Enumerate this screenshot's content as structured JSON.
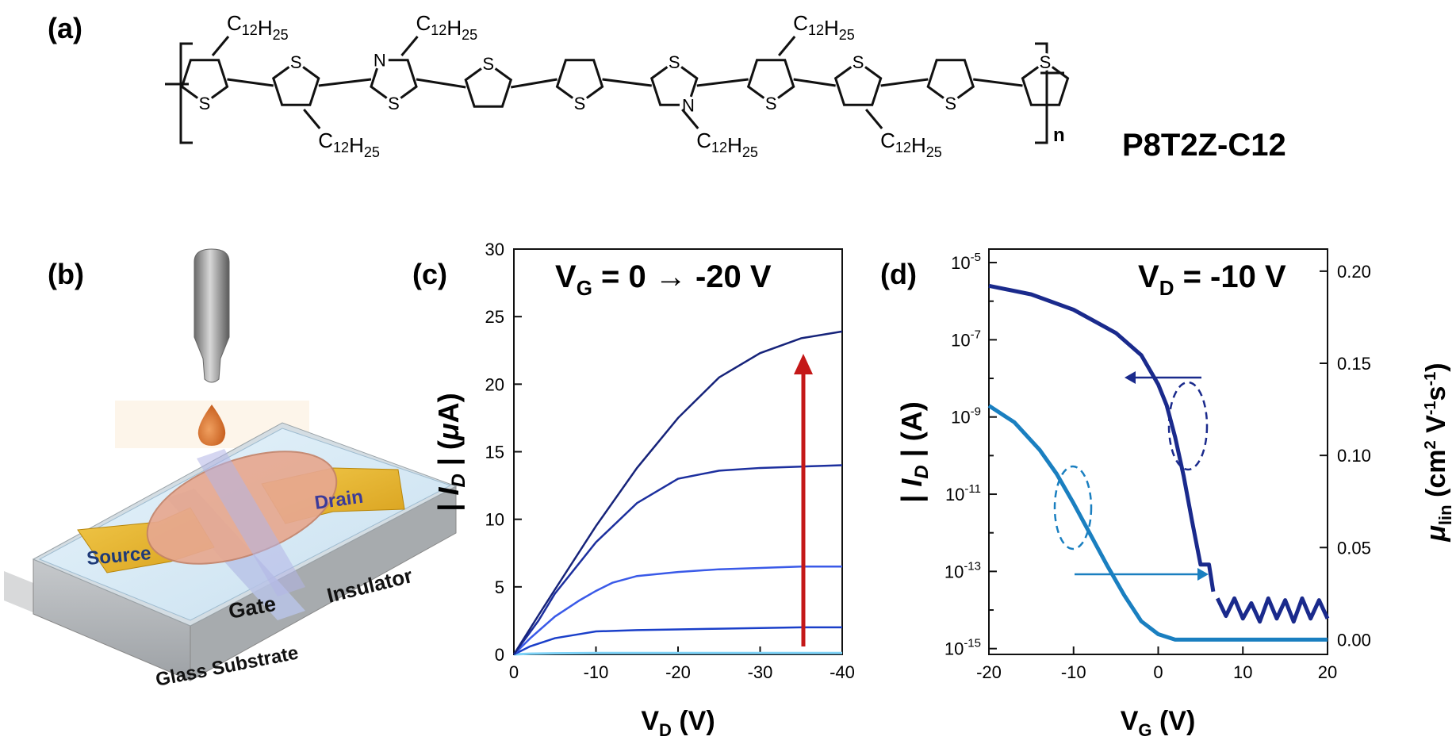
{
  "figure": {
    "panel_a": {
      "label": "(a)",
      "polymer_name": "P8T2Z-C12",
      "repeat_subscript": "n",
      "substituent": "C12H25",
      "heteroatom_S": "S",
      "heteroatom_N": "N"
    },
    "panel_b": {
      "label": "(b)",
      "layers": {
        "source": "Source",
        "drain": "Drain",
        "gate": "Gate",
        "insulator": "Insulator",
        "substrate": "Glass Substrate"
      }
    },
    "panel_c": {
      "label": "(c)",
      "annotation_main": "V",
      "annotation_sub": "G",
      "annotation_rest": " = 0 → -20 V",
      "xlabel_main": "V",
      "xlabel_sub": "D",
      "xlabel_rest": " (V)",
      "ylabel": "| I_D | (μA)"
    },
    "panel_d": {
      "label": "(d)",
      "annotation_main": "V",
      "annotation_sub": "D",
      "annotation_rest": " = -10 V",
      "xlabel_main": "V",
      "xlabel_sub": "G",
      "xlabel_rest": " (V)",
      "ylabel_left": "| I_D | (A)",
      "ylabel_right": "μ_lin (cm² V⁻¹s⁻¹)"
    }
  },
  "chart_data": [
    {
      "panel": "c",
      "type": "line",
      "xlabel": "V_D (V)",
      "ylabel": "| I_D | (μA)",
      "xlim": [
        0,
        -40
      ],
      "ylim": [
        0,
        30
      ],
      "xticks": [
        0,
        -10,
        -20,
        -30,
        -40
      ],
      "yticks": [
        0,
        5,
        10,
        15,
        20,
        25,
        30
      ],
      "annotation": "V_G = 0 → -20 V",
      "colors": [
        "#7fd3f7",
        "#1a3fc9",
        "#3a5ae8",
        "#1c2f9e",
        "#16237a"
      ],
      "series": [
        {
          "x": [
            0,
            -2,
            -5,
            -10,
            -15,
            -20,
            -25,
            -30,
            -35,
            -40
          ],
          "values": [
            0,
            0.05,
            0.08,
            0.1,
            0.1,
            0.1,
            0.1,
            0.1,
            0.1,
            0.1
          ]
        },
        {
          "x": [
            0,
            -2,
            -5,
            -8,
            -10,
            -15,
            -20,
            -25,
            -30,
            -35,
            -40
          ],
          "values": [
            0,
            0.6,
            1.2,
            1.5,
            1.7,
            1.8,
            1.85,
            1.9,
            1.95,
            2.0,
            2.0
          ]
        },
        {
          "x": [
            0,
            -2,
            -5,
            -8,
            -10,
            -12,
            -15,
            -20,
            -25,
            -30,
            -35,
            -40
          ],
          "values": [
            0,
            1.2,
            2.8,
            4.0,
            4.7,
            5.3,
            5.8,
            6.1,
            6.3,
            6.4,
            6.5,
            6.5
          ]
        },
        {
          "x": [
            0,
            -3,
            -5,
            -10,
            -15,
            -20,
            -25,
            -30,
            -35,
            -40
          ],
          "values": [
            0,
            2.5,
            4.5,
            8.3,
            11.2,
            13.0,
            13.6,
            13.8,
            13.9,
            14.0
          ]
        },
        {
          "x": [
            0,
            -3,
            -5,
            -10,
            -15,
            -20,
            -25,
            -30,
            -35,
            -40
          ],
          "values": [
            0,
            2.9,
            4.8,
            9.5,
            13.8,
            17.5,
            20.5,
            22.3,
            23.4,
            23.9
          ]
        }
      ]
    },
    {
      "panel": "d",
      "type": "line",
      "xlabel": "V_G (V)",
      "ylabel": "| I_D | (A)",
      "y2label": "μ_lin (cm² V⁻¹s⁻¹)",
      "xlim": [
        -20,
        20
      ],
      "ylim": [
        1e-15,
        1e-05
      ],
      "y_scale": "log",
      "y2lim": [
        0,
        0.2
      ],
      "xticks": [
        -20,
        -10,
        0,
        10,
        20
      ],
      "y2ticks": [
        0.0,
        0.05,
        0.1,
        0.15,
        0.2
      ],
      "annotation": "V_D = -10 V",
      "colors": [
        "#1a2a8c",
        "#1a7fc0"
      ],
      "series": [
        {
          "axis": "left",
          "x": [
            -20,
            -15,
            -10,
            -5,
            -2,
            0,
            1,
            2,
            3,
            4,
            5,
            6,
            6.5
          ],
          "values": [
            2.5e-06,
            1.5e-06,
            6e-07,
            1.5e-07,
            4e-08,
            7e-09,
            2e-09,
            3e-10,
            3e-11,
            2e-12,
            1.5e-13,
            1.5e-13,
            3e-14
          ]
        },
        {
          "axis": "left",
          "x": [
            7,
            8,
            9,
            10,
            11,
            12,
            13,
            14,
            15,
            16,
            17,
            18,
            19,
            20
          ],
          "values": [
            2e-14,
            7e-15,
            2e-14,
            6e-15,
            1.5e-14,
            5e-15,
            2e-14,
            6e-15,
            1.8e-14,
            5e-15,
            2e-14,
            6e-15,
            1.8e-14,
            6e-15
          ]
        },
        {
          "axis": "right",
          "x": [
            -20,
            -17,
            -14,
            -12,
            -10,
            -8,
            -6,
            -4,
            -2,
            0,
            2,
            4,
            8,
            12,
            16,
            20
          ],
          "values": [
            0.127,
            0.118,
            0.103,
            0.09,
            0.074,
            0.057,
            0.04,
            0.024,
            0.01,
            0.003,
            0.0,
            0.0,
            0.0,
            0.0,
            0.0,
            0.0
          ]
        }
      ]
    }
  ]
}
